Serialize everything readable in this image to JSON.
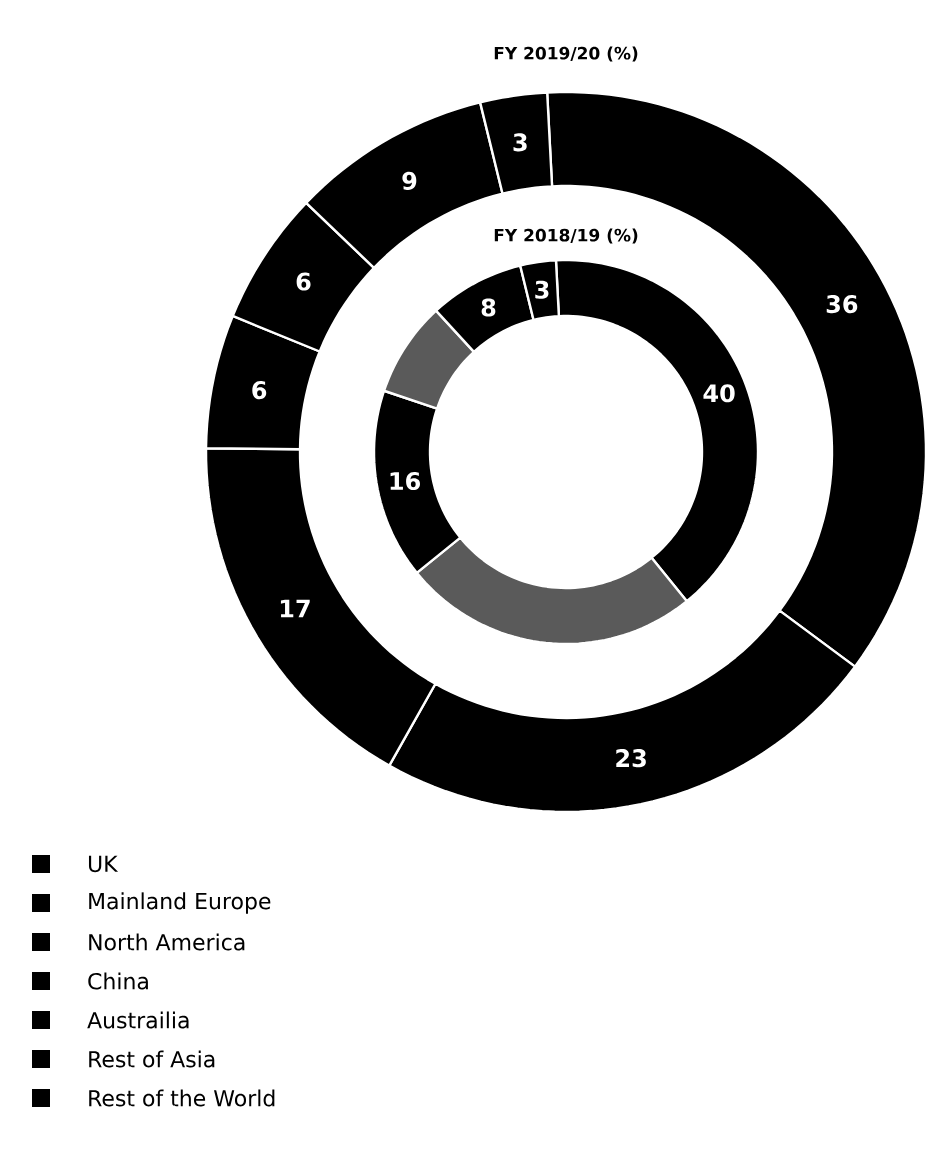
{
  "chart_data": {
    "type": "donut",
    "categories": [
      "UK",
      "Mainland Europe",
      "North America",
      "China",
      "Austrailia",
      "Rest of Asia",
      "Rest of the World"
    ],
    "colors": [
      "#000000",
      "#000000",
      "#000000",
      "#000000",
      "#000000",
      "#000000",
      "#000000"
    ],
    "series": [
      {
        "name": "FY 2019/20 (%)",
        "values": [
          36,
          23,
          17,
          6,
          6,
          9,
          3
        ],
        "value_labels": [
          "36",
          "23",
          "17",
          "6",
          "6",
          "9",
          "3"
        ],
        "colors": [
          "#000000",
          "#000000",
          "#000000",
          "#000000",
          "#000000",
          "#000000",
          "#000000"
        ]
      },
      {
        "name": "FY 2018/19 (%)",
        "values": [
          40,
          25,
          16,
          8,
          null,
          8,
          3
        ],
        "value_labels": [
          "40",
          null,
          "16",
          null,
          null,
          "8",
          "3"
        ],
        "colors": [
          "#000000",
          "#5a5a5a",
          "#000000",
          "#5a5a5a",
          "#000000",
          "#000000",
          "#000000"
        ]
      }
    ],
    "legend": "bottom left"
  }
}
